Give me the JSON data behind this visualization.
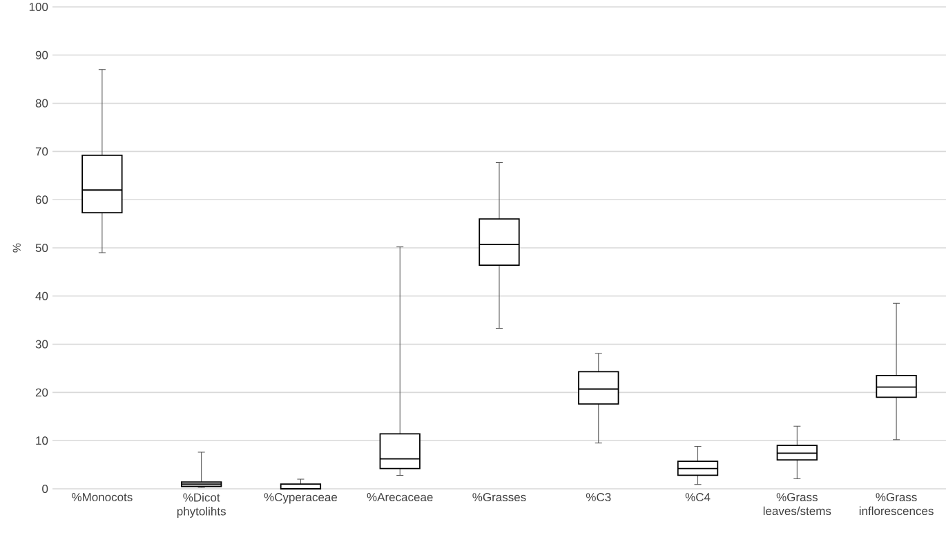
{
  "chart_data": {
    "type": "box",
    "ylabel": "%",
    "categories": [
      "%Monocots",
      "%Dicot phytolihts",
      "%Cyperaceae",
      "%Arecaceae",
      "%Grasses",
      "%C3",
      "%C4",
      "%Grass leaves/stems",
      "%Grass inflorescences"
    ],
    "boxes": [
      {
        "low": 49,
        "q1": 57.3,
        "median": 62,
        "q3": 69.2,
        "high": 87
      },
      {
        "low": 0.3,
        "q1": 0.5,
        "median": 1,
        "q3": 1.4,
        "high": 7.6
      },
      {
        "low": 0,
        "q1": 0,
        "median": 0,
        "q3": 1,
        "high": 2
      },
      {
        "low": 2.8,
        "q1": 4.2,
        "median": 6.2,
        "q3": 11.4,
        "high": 50.2
      },
      {
        "low": 33.3,
        "q1": 46.4,
        "median": 50.7,
        "q3": 56,
        "high": 67.7
      },
      {
        "low": 9.5,
        "q1": 17.6,
        "median": 20.7,
        "q3": 24.3,
        "high": 28.1
      },
      {
        "low": 0.9,
        "q1": 2.8,
        "median": 4.2,
        "q3": 5.7,
        "high": 8.8
      },
      {
        "low": 2.1,
        "q1": 6,
        "median": 7.4,
        "q3": 9,
        "high": 13
      },
      {
        "low": 10.2,
        "q1": 19,
        "median": 21.1,
        "q3": 23.5,
        "high": 38.5
      }
    ],
    "color": "#000000",
    "ylim": [
      0,
      100
    ],
    "yticks": [
      0,
      10,
      20,
      30,
      40,
      50,
      60,
      70,
      80,
      90,
      100
    ],
    "grid": "y"
  }
}
